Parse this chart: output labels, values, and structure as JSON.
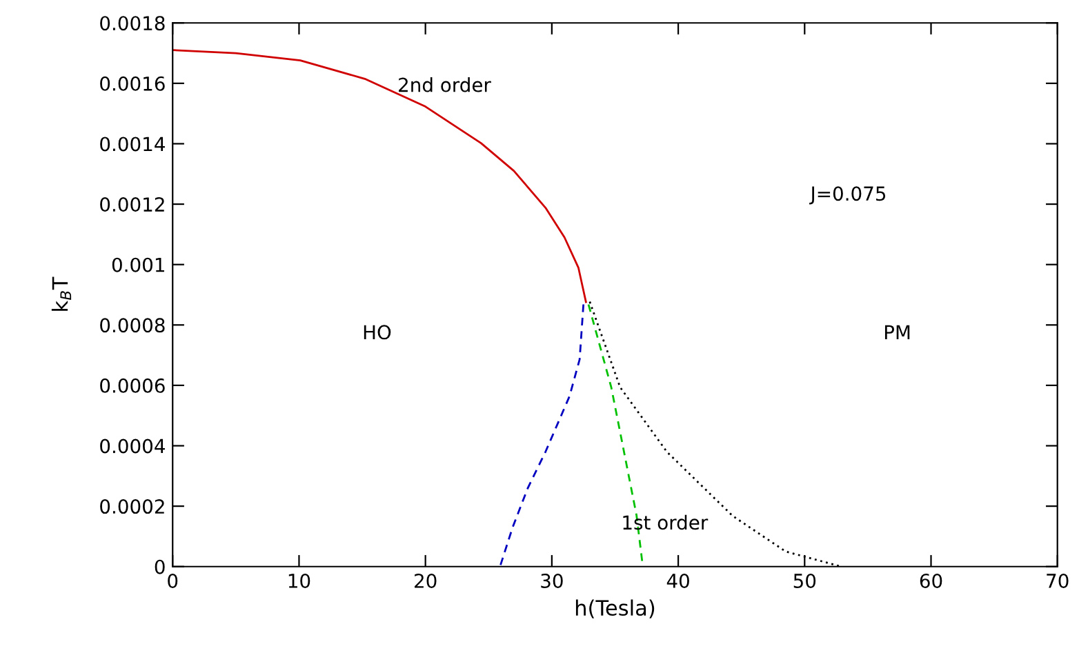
{
  "chart_data": {
    "type": "line",
    "xlabel": "h(Tesla)",
    "ylabel": "k$_{B}$T",
    "xlim": [
      0,
      70
    ],
    "ylim": [
      0,
      0.0018
    ],
    "xticks": [
      0,
      10,
      20,
      30,
      40,
      50,
      60,
      70
    ],
    "yticks": [
      0,
      0.0002,
      0.0004,
      0.0006,
      0.0008,
      0.001,
      0.0012,
      0.0014,
      0.0016,
      0.0018
    ],
    "grid": false,
    "marker": "none",
    "series": [
      {
        "color": "#d00000",
        "line_style": "solid",
        "x": [
          0,
          5,
          10.1,
          15.2,
          20,
          24.4,
          27,
          29.5,
          31,
          32.1,
          32.7
        ],
        "values": [
          0.00171,
          0.0017,
          0.001676,
          0.001615,
          0.001523,
          0.001402,
          0.00131,
          0.001188,
          0.00109,
          0.00099,
          0.000876
        ]
      },
      {
        "color": "#0000c0",
        "line_style": "dashed",
        "x": [
          32.5,
          32.2,
          31.4,
          29.5,
          28.1,
          26.9,
          25.9
        ],
        "values": [
          0.000868,
          0.000686,
          0.000564,
          0.00038,
          0.00026,
          0.00013,
          0
        ]
      },
      {
        "color": "#00c000",
        "line_style": "dashed",
        "x": [
          32.9,
          34.7,
          36.7,
          37.2
        ],
        "values": [
          0.000868,
          0.000594,
          0.00017,
          0
        ]
      },
      {
        "color": "#000000",
        "line_style": "dotted",
        "x": [
          33,
          35.4,
          39.1,
          44.3,
          48.5,
          52.9
        ],
        "values": [
          0.000877,
          0.000594,
          0.00038,
          0.000168,
          5e-05,
          0
        ]
      }
    ],
    "annotations": [
      "2nd order",
      "J=0.075",
      "HO",
      "PM",
      "1st order"
    ]
  }
}
